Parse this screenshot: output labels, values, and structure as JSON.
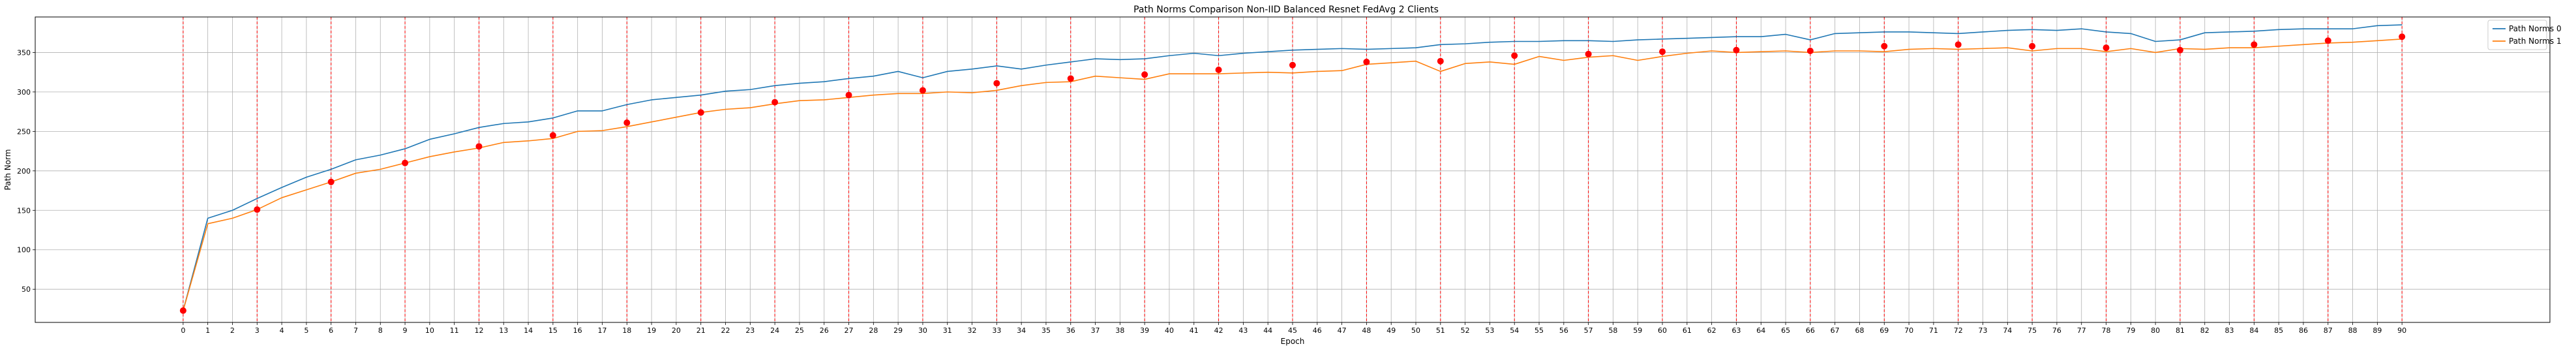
{
  "chart_data": {
    "type": "line",
    "title": "Path Norms Comparison Non-IID Balanced Resnet FedAvg 2 Clients",
    "xlabel": "Epoch",
    "ylabel": "Path Norm",
    "xlim": [
      -6,
      96
    ],
    "ylim": [
      8,
      395
    ],
    "grid": true,
    "legend_position": "upper right",
    "x": [
      0,
      1,
      2,
      3,
      4,
      5,
      6,
      7,
      8,
      9,
      10,
      11,
      12,
      13,
      14,
      15,
      16,
      17,
      18,
      19,
      20,
      21,
      22,
      23,
      24,
      25,
      26,
      27,
      28,
      29,
      30,
      31,
      32,
      33,
      34,
      35,
      36,
      37,
      38,
      39,
      40,
      41,
      42,
      43,
      44,
      45,
      46,
      47,
      48,
      49,
      50,
      51,
      52,
      53,
      54,
      55,
      56,
      57,
      58,
      59,
      60,
      61,
      62,
      63,
      64,
      65,
      66,
      67,
      68,
      69,
      70,
      71,
      72,
      73,
      74,
      75,
      76,
      77,
      78,
      79,
      80,
      81,
      82,
      83,
      84,
      85,
      86,
      87,
      88,
      89,
      90
    ],
    "x_ticks": [
      0,
      1,
      2,
      3,
      4,
      5,
      6,
      7,
      8,
      9,
      10,
      11,
      12,
      13,
      14,
      15,
      16,
      17,
      18,
      19,
      20,
      21,
      22,
      23,
      24,
      25,
      26,
      27,
      28,
      29,
      30,
      31,
      32,
      33,
      34,
      35,
      36,
      37,
      38,
      39,
      40,
      41,
      42,
      43,
      44,
      45,
      46,
      47,
      48,
      49,
      50,
      51,
      52,
      53,
      54,
      55,
      56,
      57,
      58,
      59,
      60,
      61,
      62,
      63,
      64,
      65,
      66,
      67,
      68,
      69,
      70,
      71,
      72,
      73,
      74,
      75,
      76,
      77,
      78,
      79,
      80,
      81,
      82,
      83,
      84,
      85,
      86,
      87,
      88,
      89,
      90
    ],
    "y_ticks": [
      50,
      100,
      150,
      200,
      250,
      300,
      350
    ],
    "series": [
      {
        "name": "Path Norms 0",
        "color": "#1f77b4",
        "values": [
          23,
          140,
          150,
          165,
          179,
          192,
          202,
          214,
          220,
          228,
          240,
          247,
          255,
          260,
          262,
          267,
          276,
          276,
          284,
          290,
          293,
          296,
          301,
          303,
          308,
          311,
          313,
          317,
          320,
          326,
          318,
          326,
          329,
          333,
          329,
          334,
          338,
          342,
          341,
          342,
          346,
          349,
          346,
          349,
          351,
          353,
          354,
          355,
          354,
          355,
          356,
          360,
          361,
          363,
          364,
          364,
          365,
          365,
          364,
          366,
          367,
          368,
          369,
          370,
          370,
          373,
          366,
          374,
          375,
          376,
          376,
          375,
          374,
          376,
          378,
          379,
          378,
          380,
          376,
          374,
          364,
          366,
          375,
          376,
          377,
          379,
          380,
          380,
          380,
          384,
          385
        ]
      },
      {
        "name": "Path Norms 1",
        "color": "#ff7f0e",
        "values": [
          23,
          133,
          140,
          151,
          166,
          176,
          186,
          197,
          202,
          210,
          218,
          224,
          229,
          236,
          238,
          241,
          250,
          251,
          256,
          262,
          268,
          274,
          278,
          280,
          285,
          289,
          290,
          293,
          296,
          298,
          298,
          300,
          299,
          302,
          308,
          312,
          313,
          320,
          318,
          316,
          323,
          323,
          323,
          324,
          325,
          324,
          326,
          327,
          335,
          337,
          339,
          326,
          336,
          338,
          335,
          345,
          340,
          344,
          346,
          340,
          345,
          349,
          352,
          350,
          351,
          352,
          350,
          352,
          352,
          351,
          354,
          355,
          354,
          355,
          356,
          352,
          355,
          355,
          351,
          355,
          350,
          355,
          354,
          356,
          356,
          358,
          360,
          362,
          363,
          365,
          367
        ]
      }
    ],
    "highlight_epochs": [
      0,
      3,
      6,
      9,
      12,
      15,
      18,
      21,
      24,
      27,
      30,
      33,
      36,
      39,
      42,
      45,
      48,
      51,
      54,
      57,
      60,
      63,
      66,
      69,
      72,
      75,
      78,
      81,
      84,
      87,
      90
    ],
    "highlight_points": [
      {
        "x": 0,
        "y": 23
      },
      {
        "x": 3,
        "y": 151
      },
      {
        "x": 6,
        "y": 186
      },
      {
        "x": 9,
        "y": 210
      },
      {
        "x": 12,
        "y": 231
      },
      {
        "x": 15,
        "y": 245
      },
      {
        "x": 18,
        "y": 261
      },
      {
        "x": 21,
        "y": 274
      },
      {
        "x": 24,
        "y": 287
      },
      {
        "x": 27,
        "y": 296
      },
      {
        "x": 30,
        "y": 302
      },
      {
        "x": 33,
        "y": 311
      },
      {
        "x": 36,
        "y": 317
      },
      {
        "x": 39,
        "y": 322
      },
      {
        "x": 42,
        "y": 328
      },
      {
        "x": 45,
        "y": 334
      },
      {
        "x": 48,
        "y": 338
      },
      {
        "x": 51,
        "y": 339
      },
      {
        "x": 54,
        "y": 346
      },
      {
        "x": 57,
        "y": 348
      },
      {
        "x": 60,
        "y": 351
      },
      {
        "x": 63,
        "y": 353
      },
      {
        "x": 66,
        "y": 352
      },
      {
        "x": 69,
        "y": 358
      },
      {
        "x": 72,
        "y": 360
      },
      {
        "x": 75,
        "y": 358
      },
      {
        "x": 78,
        "y": 356
      },
      {
        "x": 81,
        "y": 353
      },
      {
        "x": 84,
        "y": 360
      },
      {
        "x": 87,
        "y": 365
      },
      {
        "x": 90,
        "y": 370
      }
    ],
    "highlight_color": "#ff0000"
  }
}
